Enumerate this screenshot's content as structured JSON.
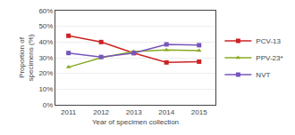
{
  "chart_data": {
    "type": "line",
    "x": [
      2011,
      2012,
      2013,
      2014,
      2015
    ],
    "series": [
      {
        "name": "PCV-13",
        "color": "#cc2222",
        "marker": "square",
        "values": [
          44,
          40,
          33,
          27,
          27.5
        ]
      },
      {
        "name": "PPV-23*",
        "color": "#88aa22",
        "marker": "triangle-up",
        "values": [
          24,
          30,
          34,
          35,
          34.5
        ]
      },
      {
        "name": "NVT",
        "color": "#7755bb",
        "marker": "square",
        "values": [
          33,
          30.5,
          33,
          38.5,
          38
        ]
      }
    ],
    "xlabel": "Year of specimen collection",
    "ylabel": "Proportion of\nspecimens (%)",
    "xlim": [
      2010.6,
      2015.5
    ],
    "xticks": [
      2011,
      2012,
      2013,
      2014,
      2015
    ],
    "ylim": [
      0,
      60
    ],
    "yticks": [
      {
        "value": 0,
        "label": "0%"
      },
      {
        "value": 10,
        "label": "10%"
      },
      {
        "value": 20,
        "label": "20%"
      },
      {
        "value": 30,
        "label": "30%"
      },
      {
        "value": 40,
        "label": "40%"
      },
      {
        "value": 50,
        "label": "50%"
      },
      {
        "value": 60,
        "label": "60%"
      }
    ],
    "grid": "y",
    "legend": "right"
  }
}
